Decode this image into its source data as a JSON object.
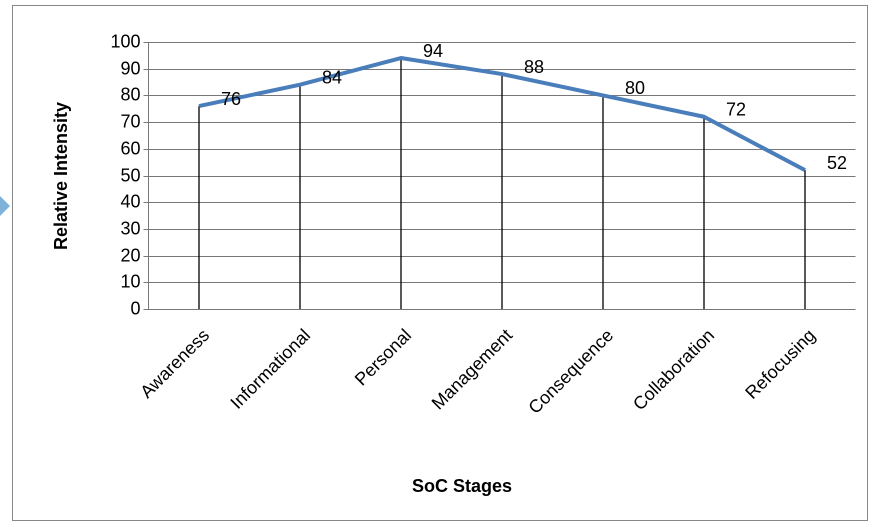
{
  "chart_data": {
    "type": "line",
    "categories": [
      "Awareness",
      "Informational",
      "Personal",
      "Management",
      "Consequence",
      "Collaboration",
      "Refocusing"
    ],
    "series": [
      {
        "name": "Relative Intensity",
        "color": "#4a7ebb",
        "values": [
          76,
          84,
          94,
          88,
          80,
          72,
          52
        ]
      }
    ],
    "ylim": [
      0,
      100
    ],
    "yticks": [
      0,
      10,
      20,
      30,
      40,
      50,
      60,
      70,
      80,
      90,
      100
    ],
    "grid": true,
    "xlabel": "SoC Stages",
    "ylabel": "Relative Intensity",
    "drop_lines": true
  }
}
